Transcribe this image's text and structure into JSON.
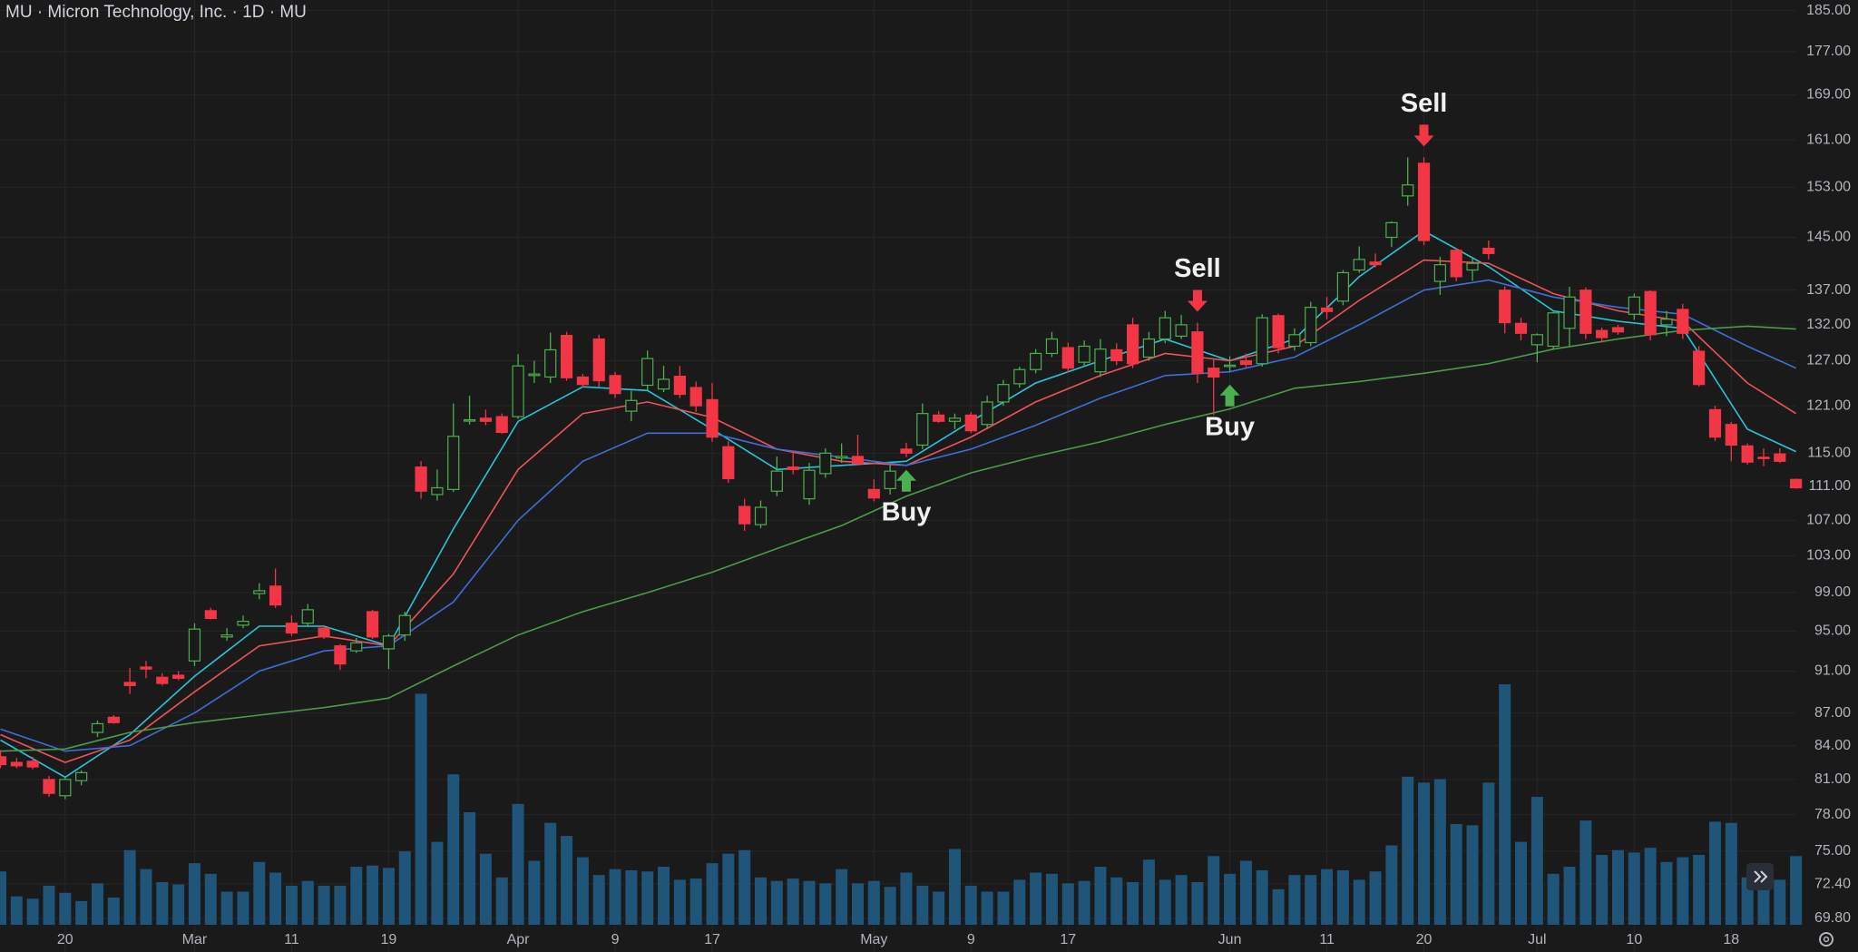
{
  "chart_data": {
    "type": "candlestick",
    "title": "MU · Micron Technology, Inc. · 1D · MU",
    "log_scale": true,
    "grid": true,
    "up_color": "#4caf50",
    "down_color": "#f23645",
    "volume_color": "#1f5578",
    "categories": [
      null,
      null,
      null,
      null,
      "20",
      null,
      null,
      null,
      null,
      null,
      null,
      null,
      "Mar",
      null,
      null,
      null,
      null,
      null,
      "11",
      null,
      null,
      null,
      null,
      null,
      "19",
      null,
      null,
      null,
      null,
      null,
      null,
      null,
      "Apr",
      null,
      null,
      null,
      null,
      null,
      "9",
      null,
      null,
      null,
      null,
      null,
      "17",
      null,
      null,
      null,
      null,
      null,
      null,
      null,
      null,
      null,
      "May",
      null,
      null,
      null,
      null,
      null,
      "9",
      null,
      null,
      null,
      null,
      null,
      "17",
      null,
      null,
      null,
      null,
      null,
      null,
      null,
      null,
      null,
      "Jun",
      null,
      null,
      null,
      null,
      null,
      "11",
      null,
      null,
      null,
      null,
      null,
      "20",
      null,
      null,
      null,
      null,
      null,
      null,
      "Jul",
      null,
      null,
      null,
      null,
      null,
      "10",
      null,
      null,
      null,
      null,
      null,
      "18",
      null,
      null,
      null,
      null
    ],
    "open": [
      83.0,
      82.5,
      82.6,
      81.0,
      79.6,
      80.9,
      85.2,
      86.6,
      89.9,
      91.4,
      90.4,
      90.6,
      92.0,
      97.1,
      94.4,
      95.6,
      98.9,
      99.7,
      95.8,
      95.8,
      95.3,
      93.5,
      93.0,
      97.0,
      93.2,
      94.6,
      113.3,
      110.0,
      110.6,
      119.1,
      119.4,
      119.6,
      119.6,
      125.0,
      124.8,
      130.5,
      124.8,
      130.0,
      125.0,
      120.3,
      123.7,
      123.2,
      124.9,
      123.4,
      121.8,
      115.8,
      108.6,
      106.5,
      110.4,
      113.3,
      109.5,
      112.5,
      114.4,
      114.6,
      110.6,
      110.7,
      115.5,
      116.0,
      119.8,
      119.0,
      119.8,
      118.6,
      121.5,
      123.9,
      125.8,
      128.0,
      128.8,
      126.8,
      125.5,
      128.5,
      132.0,
      127.5,
      130.0,
      130.4,
      131.0,
      126.0,
      126.3,
      127.0,
      126.6,
      133.3,
      129.0,
      129.5,
      134.4,
      135.4,
      140.0,
      141.2,
      145.0,
      151.6,
      157.0,
      138.3,
      143.0,
      140.0,
      143.3,
      137.0,
      132.2,
      129.2,
      129.0,
      131.5,
      137.0,
      131.2,
      131.6,
      133.5,
      136.8,
      132.0,
      134.2,
      128.3,
      120.5,
      118.6,
      115.9,
      114.5,
      114.9,
      111.8
    ],
    "high": [
      83.6,
      82.9,
      83.0,
      81.3,
      81.2,
      81.8,
      86.3,
      86.8,
      91.3,
      92.0,
      90.8,
      91.0,
      95.8,
      97.4,
      95.3,
      96.6,
      100.0,
      101.6,
      96.6,
      97.8,
      95.6,
      93.7,
      94.3,
      97.2,
      94.7,
      97.0,
      114.0,
      113.0,
      121.3,
      122.3,
      120.5,
      120.0,
      127.9,
      127.0,
      130.9,
      131.0,
      125.2,
      130.6,
      125.5,
      123.0,
      128.4,
      126.3,
      126.3,
      124.2,
      124.0,
      116.5,
      109.5,
      109.3,
      114.6,
      115.3,
      113.8,
      115.6,
      116.2,
      117.3,
      111.8,
      113.6,
      116.3,
      121.3,
      120.3,
      120.0,
      120.2,
      122.3,
      124.4,
      126.2,
      128.6,
      131.0,
      129.5,
      129.8,
      130.0,
      129.4,
      133.0,
      131.0,
      134.0,
      133.4,
      132.3,
      127.3,
      127.6,
      128.0,
      133.5,
      133.6,
      131.5,
      135.3,
      136.0,
      140.0,
      143.6,
      142.5,
      147.5,
      158.0,
      158.0,
      142.0,
      143.3,
      142.0,
      144.5,
      137.6,
      133.0,
      130.8,
      134.0,
      137.5,
      137.4,
      131.6,
      132.0,
      136.5,
      137.0,
      134.0,
      135.0,
      129.0,
      121.0,
      118.9,
      116.2,
      115.6,
      115.6,
      111.9
    ],
    "low": [
      82.0,
      82.0,
      81.9,
      79.5,
      79.3,
      80.5,
      84.8,
      86.0,
      88.8,
      90.3,
      89.6,
      90.1,
      91.5,
      96.2,
      94.0,
      95.3,
      98.3,
      97.4,
      94.5,
      95.5,
      94.2,
      91.1,
      92.8,
      94.2,
      91.2,
      94.0,
      109.5,
      109.3,
      110.3,
      118.6,
      118.5,
      117.4,
      119.3,
      124.0,
      124.0,
      124.3,
      123.4,
      123.5,
      122.0,
      119.0,
      123.0,
      122.8,
      122.0,
      120.2,
      116.4,
      111.4,
      105.8,
      106.1,
      109.8,
      112.4,
      108.8,
      112.0,
      113.8,
      113.5,
      109.2,
      110.0,
      114.5,
      115.5,
      118.8,
      118.0,
      117.5,
      118.0,
      121.0,
      123.4,
      125.3,
      127.5,
      125.4,
      126.2,
      124.8,
      126.4,
      126.0,
      127.0,
      129.4,
      130.0,
      124.0,
      119.8,
      125.5,
      126.0,
      126.2,
      128.0,
      128.4,
      129.0,
      132.8,
      134.8,
      139.6,
      140.4,
      143.5,
      150.0,
      143.8,
      136.3,
      138.3,
      138.4,
      141.6,
      130.8,
      129.8,
      126.8,
      128.5,
      129.0,
      130.0,
      129.5,
      130.6,
      132.7,
      129.8,
      130.4,
      130.0,
      123.5,
      116.5,
      114.0,
      113.6,
      113.4,
      113.8,
      110.7
    ],
    "close": [
      82.3,
      82.2,
      82.1,
      79.8,
      81.0,
      81.6,
      86.0,
      86.1,
      89.6,
      91.2,
      89.8,
      90.3,
      95.2,
      96.3,
      94.6,
      96.0,
      99.2,
      97.7,
      94.8,
      97.2,
      94.4,
      91.7,
      93.8,
      94.4,
      94.5,
      96.6,
      110.4,
      110.8,
      117.1,
      119.2,
      119.0,
      117.6,
      126.3,
      125.2,
      128.5,
      124.7,
      123.8,
      124.3,
      122.6,
      121.7,
      127.3,
      124.5,
      122.5,
      121.0,
      117.0,
      111.9,
      106.6,
      108.5,
      112.8,
      113.0,
      112.9,
      115.0,
      114.6,
      113.7,
      109.6,
      112.8,
      115.0,
      120.0,
      119.0,
      119.4,
      117.8,
      121.5,
      123.8,
      125.8,
      128.0,
      130.0,
      126.0,
      129.0,
      128.6,
      127.0,
      126.6,
      130.0,
      133.0,
      132.0,
      125.3,
      124.8,
      126.4,
      126.5,
      133.0,
      128.8,
      130.6,
      134.5,
      133.9,
      139.6,
      141.6,
      140.8,
      147.3,
      153.4,
      144.5,
      140.8,
      139.0,
      141.0,
      142.5,
      132.3,
      130.8,
      130.6,
      133.7,
      136.0,
      130.8,
      130.2,
      131.0,
      136.0,
      130.6,
      132.8,
      130.8,
      123.8,
      117.0,
      116.0,
      113.9,
      114.4,
      114.0,
      110.8
    ],
    "volume": [
      45,
      24,
      22,
      33,
      27,
      20,
      35,
      23,
      63,
      47,
      36,
      34,
      52,
      43,
      28,
      28,
      53,
      44,
      33,
      37,
      33,
      33,
      49,
      50,
      48,
      62,
      195,
      70,
      127,
      95,
      60,
      40,
      102,
      54,
      86,
      75,
      57,
      42,
      47,
      46,
      45,
      49,
      38,
      39,
      52,
      60,
      63,
      40,
      37,
      39,
      37,
      35,
      47,
      35,
      37,
      32,
      44,
      33,
      28,
      64,
      33,
      28,
      28,
      38,
      44,
      43,
      35,
      37,
      49,
      40,
      36,
      55,
      38,
      42,
      36,
      58,
      43,
      54,
      46,
      30,
      42,
      42,
      47,
      46,
      38,
      45,
      67,
      125,
      120,
      123,
      85,
      84,
      120,
      203,
      70,
      108,
      43,
      49,
      88,
      59,
      63,
      61,
      65,
      53,
      57,
      59,
      87,
      86,
      40,
      38,
      38,
      58
    ],
    "lines": [
      {
        "color": "#26c6da",
        "x": [
          0,
          4,
          8,
          12,
          16,
          20,
          24,
          28,
          32,
          36,
          40,
          44,
          48,
          52,
          56,
          60,
          64,
          68,
          72,
          76,
          80,
          84,
          88,
          92,
          96,
          100,
          104,
          108,
          111
        ],
        "values": [
          84.5,
          81.2,
          85.0,
          90.5,
          95.5,
          95.5,
          93.5,
          106.0,
          119.0,
          123.5,
          123.0,
          118.0,
          113.0,
          113.5,
          114.0,
          119.0,
          124.0,
          127.0,
          130.0,
          127.0,
          130.0,
          139.0,
          146.0,
          140.5,
          134.0,
          132.5,
          131.5,
          118.0,
          115.2
        ]
      },
      {
        "color": "#f0525a",
        "x": [
          0,
          4,
          8,
          12,
          16,
          20,
          24,
          28,
          32,
          36,
          40,
          44,
          48,
          52,
          56,
          60,
          64,
          68,
          72,
          76,
          80,
          84,
          88,
          92,
          96,
          100,
          104,
          108,
          111
        ],
        "values": [
          85.0,
          82.5,
          84.5,
          89.0,
          93.5,
          94.5,
          93.5,
          101.0,
          113.0,
          120.0,
          121.5,
          119.5,
          115.5,
          114.0,
          113.5,
          117.0,
          121.5,
          125.0,
          128.0,
          127.0,
          129.0,
          135.5,
          141.5,
          141.0,
          136.5,
          134.0,
          132.5,
          124.0,
          120.0
        ]
      },
      {
        "color": "#3d6fd6",
        "x": [
          0,
          4,
          8,
          12,
          16,
          20,
          24,
          28,
          32,
          36,
          40,
          44,
          48,
          52,
          56,
          60,
          64,
          68,
          72,
          76,
          80,
          84,
          88,
          92,
          96,
          100,
          104,
          108,
          111
        ],
        "values": [
          85.5,
          83.5,
          84.0,
          87.0,
          91.0,
          93.0,
          93.5,
          98.0,
          107.0,
          114.0,
          117.5,
          117.5,
          115.5,
          114.5,
          113.5,
          115.5,
          118.5,
          122.0,
          125.0,
          125.5,
          127.5,
          132.0,
          137.0,
          138.5,
          136.0,
          134.5,
          133.5,
          129.0,
          126.0
        ]
      },
      {
        "color": "#4c9a4c",
        "x": [
          0,
          4,
          8,
          12,
          16,
          20,
          24,
          28,
          32,
          36,
          40,
          44,
          48,
          52,
          56,
          60,
          64,
          68,
          72,
          76,
          80,
          84,
          88,
          92,
          96,
          100,
          104,
          108,
          111
        ],
        "values": [
          83.5,
          83.7,
          85.2,
          86.1,
          86.8,
          87.5,
          88.4,
          91.5,
          94.6,
          97.0,
          99.0,
          101.2,
          103.8,
          106.4,
          109.8,
          112.6,
          114.6,
          116.4,
          118.6,
          120.6,
          123.3,
          124.2,
          125.3,
          126.6,
          128.6,
          130.0,
          131.2,
          131.8,
          131.4
        ]
      }
    ],
    "annotations": [
      {
        "text": "Buy",
        "index": 56,
        "color": "#4caf50"
      },
      {
        "text": "Sell",
        "index": 74,
        "color": "#f23645"
      },
      {
        "text": "Buy",
        "index": 76,
        "color": "#4caf50"
      },
      {
        "text": "Sell",
        "index": 88,
        "color": "#f23645"
      }
    ],
    "ylim": [
      67.3,
      187.1
    ],
    "yticks": [
      {
        "value": 185,
        "label": "185.00"
      },
      {
        "value": 177,
        "label": "177.00"
      },
      {
        "value": 169,
        "label": "169.00"
      },
      {
        "value": 161,
        "label": "161.00"
      },
      {
        "value": 153,
        "label": "153.00"
      },
      {
        "value": 145,
        "label": "145.00"
      },
      {
        "value": 137,
        "label": "137.00"
      },
      {
        "value": 132,
        "label": "132.00"
      },
      {
        "value": 127,
        "label": "127.00"
      },
      {
        "value": 121,
        "label": "121.00"
      },
      {
        "value": 115,
        "label": "115.00"
      },
      {
        "value": 111,
        "label": "111.00"
      },
      {
        "value": 107,
        "label": "107.00"
      },
      {
        "value": 103,
        "label": "103.00"
      },
      {
        "value": 99,
        "label": "99.00"
      },
      {
        "value": 95,
        "label": "95.00"
      },
      {
        "value": 91,
        "label": "91.00"
      },
      {
        "value": 87,
        "label": "87.00"
      },
      {
        "value": 84,
        "label": "84.00"
      },
      {
        "value": 81,
        "label": "81.00"
      },
      {
        "value": 78,
        "label": "78.00"
      },
      {
        "value": 75,
        "label": "75.00"
      },
      {
        "value": 72.4,
        "label": "72.40"
      },
      {
        "value": 69.8,
        "label": "69.80"
      }
    ]
  }
}
